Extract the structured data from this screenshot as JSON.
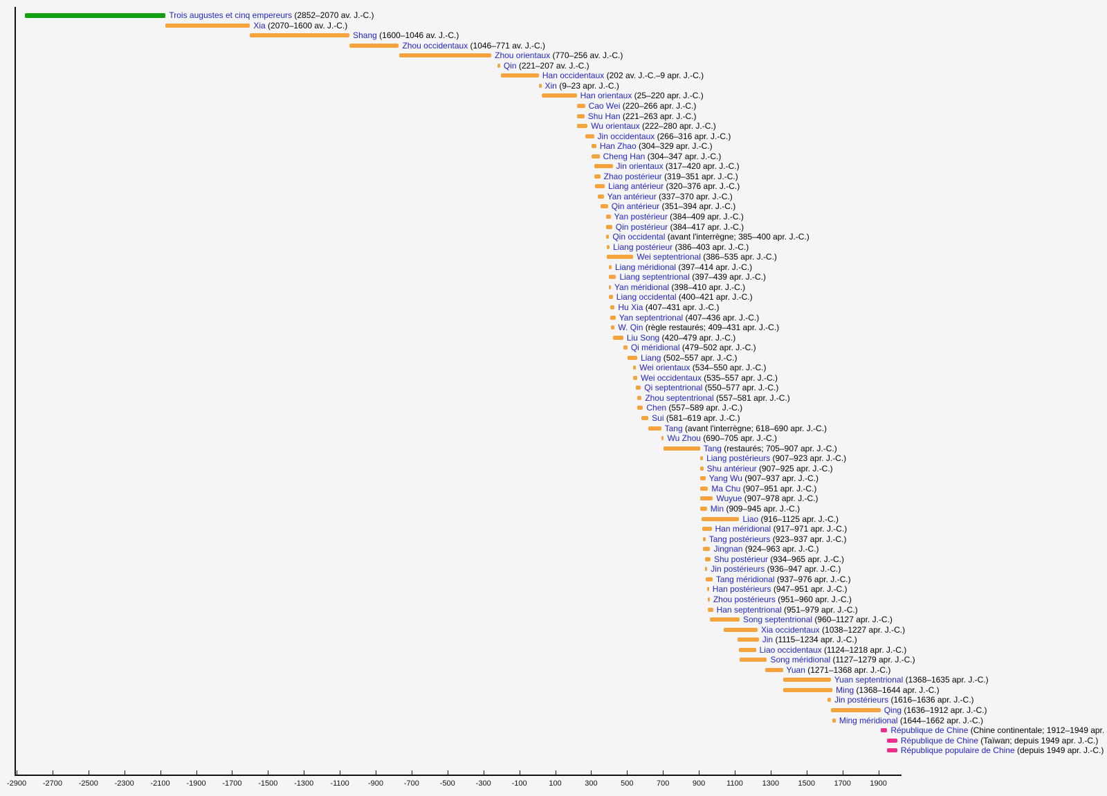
{
  "chart_data": {
    "type": "bar",
    "variant": "horizontal-timeline",
    "title": "",
    "xlabel": "",
    "ylabel": "",
    "grid": false,
    "legend": "none",
    "axis": {
      "min_year": -2900,
      "max_year": 2005,
      "tick_interval": 200,
      "tick_years": [
        -2900,
        -2700,
        -2500,
        -2300,
        -2100,
        -1900,
        -1700,
        -1500,
        -1300,
        -1100,
        -900,
        -700,
        -500,
        -300,
        -100,
        100,
        300,
        500,
        700,
        900,
        1100,
        1300,
        1500,
        1700,
        1900
      ],
      "tick_labels": [
        "-2900",
        "-2700",
        "-2500",
        "-2300",
        "-2100",
        "-1900",
        "-1700",
        "-1500",
        "-1300",
        "-1100",
        "-900",
        "-700",
        "-500",
        "-300",
        "-100",
        "100",
        "300",
        "500",
        "700",
        "900",
        "1100",
        "1300",
        "1500",
        "1700",
        "1900"
      ]
    },
    "palette": {
      "legendary": "#12A012",
      "imperial": "#F5A33D",
      "modern": "#EE2C8C",
      "label_link": "#2424CC",
      "date_text": "#000000",
      "axis": "#111111",
      "background": "#F4F5F4"
    },
    "entries": [
      {
        "name": "Trois augustes et cinq empereurs",
        "detail": "(2852–2070 av. J.-C.)",
        "start": -2852,
        "end": -2070,
        "color": "legendary"
      },
      {
        "name": "Xia",
        "detail": "(2070–1600 av. J.-C.)",
        "start": -2070,
        "end": -1600,
        "color": "imperial"
      },
      {
        "name": "Shang",
        "detail": "(1600–1046 av. J.-C.)",
        "start": -1600,
        "end": -1046,
        "color": "imperial"
      },
      {
        "name": "Zhou occidentaux",
        "detail": "(1046–771 av. J.-C.)",
        "start": -1046,
        "end": -771,
        "color": "imperial"
      },
      {
        "name": "Zhou orientaux",
        "detail": "(770–256 av. J.-C.)",
        "start": -770,
        "end": -256,
        "color": "imperial"
      },
      {
        "name": "Qin",
        "detail": "(221–207 av. J.-C.)",
        "start": -221,
        "end": -207,
        "color": "imperial"
      },
      {
        "name": "Han occidentaux",
        "detail": "(202 av. J.-C.–9 apr. J.-C.)",
        "start": -202,
        "end": 9,
        "color": "imperial"
      },
      {
        "name": "Xin",
        "detail": "(9–23 apr. J.-C.)",
        "start": 9,
        "end": 23,
        "color": "imperial"
      },
      {
        "name": "Han orientaux",
        "detail": "(25–220 apr. J.-C.)",
        "start": 25,
        "end": 220,
        "color": "imperial"
      },
      {
        "name": "Cao Wei",
        "detail": "(220–266 apr. J.-C.)",
        "start": 220,
        "end": 266,
        "color": "imperial"
      },
      {
        "name": "Shu Han",
        "detail": "(221–263 apr. J.-C.)",
        "start": 221,
        "end": 263,
        "color": "imperial"
      },
      {
        "name": "Wu orientaux",
        "detail": "(222–280 apr. J.-C.)",
        "start": 222,
        "end": 280,
        "color": "imperial"
      },
      {
        "name": "Jin occidentaux",
        "detail": "(266–316 apr. J.-C.)",
        "start": 266,
        "end": 316,
        "color": "imperial"
      },
      {
        "name": "Han Zhao",
        "detail": "(304–329 apr. J.-C.)",
        "start": 304,
        "end": 329,
        "color": "imperial"
      },
      {
        "name": "Cheng Han",
        "detail": "(304–347 apr. J.-C.)",
        "start": 304,
        "end": 347,
        "color": "imperial"
      },
      {
        "name": "Jin orientaux",
        "detail": "(317–420 apr. J.-C.)",
        "start": 317,
        "end": 420,
        "color": "imperial"
      },
      {
        "name": "Zhao postérieur",
        "detail": "(319–351 apr. J.-C.)",
        "start": 319,
        "end": 351,
        "color": "imperial"
      },
      {
        "name": "Liang antérieur",
        "detail": "(320–376 apr. J.-C.)",
        "start": 320,
        "end": 376,
        "color": "imperial"
      },
      {
        "name": "Yan antérieur",
        "detail": "(337–370 apr. J.-C.)",
        "start": 337,
        "end": 370,
        "color": "imperial"
      },
      {
        "name": "Qin antérieur",
        "detail": "(351–394 apr. J.-C.)",
        "start": 351,
        "end": 394,
        "color": "imperial"
      },
      {
        "name": "Yan postérieur",
        "detail": "(384–409 apr. J.-C.)",
        "start": 384,
        "end": 409,
        "color": "imperial"
      },
      {
        "name": "Qin postérieur",
        "detail": "(384–417 apr. J.-C.)",
        "start": 384,
        "end": 417,
        "color": "imperial"
      },
      {
        "name": "Qin occidental",
        "detail": "(avant l'interrègne; 385–400 apr. J.-C.)",
        "start": 385,
        "end": 400,
        "color": "imperial"
      },
      {
        "name": "Liang postérieur",
        "detail": "(386–403 apr. J.-C.)",
        "start": 386,
        "end": 403,
        "color": "imperial"
      },
      {
        "name": "Wei septentrional",
        "detail": "(386–535 apr. J.-C.)",
        "start": 386,
        "end": 535,
        "color": "imperial"
      },
      {
        "name": "Liang méridional",
        "detail": "(397–414 apr. J.-C.)",
        "start": 397,
        "end": 414,
        "color": "imperial"
      },
      {
        "name": "Liang septentrional",
        "detail": "(397–439 apr. J.-C.)",
        "start": 397,
        "end": 439,
        "color": "imperial"
      },
      {
        "name": "Yan méridional",
        "detail": "(398–410 apr. J.-C.)",
        "start": 398,
        "end": 410,
        "color": "imperial"
      },
      {
        "name": "Liang occidental",
        "detail": "(400–421 apr. J.-C.)",
        "start": 400,
        "end": 421,
        "color": "imperial"
      },
      {
        "name": "Hu Xia",
        "detail": "(407–431 apr. J.-C.)",
        "start": 407,
        "end": 431,
        "color": "imperial"
      },
      {
        "name": "Yan septentrional",
        "detail": "(407–436 apr. J.-C.)",
        "start": 407,
        "end": 436,
        "color": "imperial"
      },
      {
        "name": "W. Qin",
        "detail": "(règle restaurés; 409–431 apr. J.-C.)",
        "start": 409,
        "end": 431,
        "color": "imperial"
      },
      {
        "name": "Liu Song",
        "detail": "(420–479 apr. J.-C.)",
        "start": 420,
        "end": 479,
        "color": "imperial"
      },
      {
        "name": "Qi méridional",
        "detail": "(479–502 apr. J.-C.)",
        "start": 479,
        "end": 502,
        "color": "imperial"
      },
      {
        "name": "Liang",
        "detail": "(502–557 apr. J.-C.)",
        "start": 502,
        "end": 557,
        "color": "imperial"
      },
      {
        "name": "Wei orientaux",
        "detail": "(534–550 apr. J.-C.)",
        "start": 534,
        "end": 550,
        "color": "imperial"
      },
      {
        "name": "Wei occidentaux",
        "detail": "(535–557 apr. J.-C.)",
        "start": 535,
        "end": 557,
        "color": "imperial"
      },
      {
        "name": "Qi septentrional",
        "detail": "(550–577 apr. J.-C.)",
        "start": 550,
        "end": 577,
        "color": "imperial"
      },
      {
        "name": "Zhou septentrional",
        "detail": "(557–581 apr. J.-C.)",
        "start": 557,
        "end": 581,
        "color": "imperial"
      },
      {
        "name": "Chen",
        "detail": "(557–589 apr. J.-C.)",
        "start": 557,
        "end": 589,
        "color": "imperial"
      },
      {
        "name": "Sui",
        "detail": "(581–619 apr. J.-C.)",
        "start": 581,
        "end": 619,
        "color": "imperial"
      },
      {
        "name": "Tang",
        "detail": "(avant l'interrègne; 618–690 apr. J.-C.)",
        "start": 618,
        "end": 690,
        "color": "imperial"
      },
      {
        "name": "Wu Zhou",
        "detail": "(690–705 apr. J.-C.)",
        "start": 690,
        "end": 705,
        "color": "imperial"
      },
      {
        "name": "Tang",
        "detail": "(restaurés; 705–907 apr. J.-C.)",
        "start": 705,
        "end": 907,
        "color": "imperial"
      },
      {
        "name": "Liang postérieurs",
        "detail": "(907–923 apr. J.-C.)",
        "start": 907,
        "end": 923,
        "color": "imperial"
      },
      {
        "name": "Shu antérieur",
        "detail": "(907–925 apr. J.-C.)",
        "start": 907,
        "end": 925,
        "color": "imperial"
      },
      {
        "name": "Yang Wu",
        "detail": "(907–937 apr. J.-C.)",
        "start": 907,
        "end": 937,
        "color": "imperial"
      },
      {
        "name": "Ma Chu",
        "detail": "(907–951 apr. J.-C.)",
        "start": 907,
        "end": 951,
        "color": "imperial"
      },
      {
        "name": "Wuyue",
        "detail": "(907–978 apr. J.-C.)",
        "start": 907,
        "end": 978,
        "color": "imperial"
      },
      {
        "name": "Min",
        "detail": "(909–945 apr. J.-C.)",
        "start": 909,
        "end": 945,
        "color": "imperial"
      },
      {
        "name": "Liao",
        "detail": "(916–1125 apr. J.-C.)",
        "start": 916,
        "end": 1125,
        "color": "imperial"
      },
      {
        "name": "Han méridional",
        "detail": "(917–971 apr. J.-C.)",
        "start": 917,
        "end": 971,
        "color": "imperial"
      },
      {
        "name": "Tang postérieurs",
        "detail": "(923–937 apr. J.-C.)",
        "start": 923,
        "end": 937,
        "color": "imperial"
      },
      {
        "name": "Jingnan",
        "detail": "(924–963 apr. J.-C.)",
        "start": 924,
        "end": 963,
        "color": "imperial"
      },
      {
        "name": "Shu postérieur",
        "detail": "(934–965 apr. J.-C.)",
        "start": 934,
        "end": 965,
        "color": "imperial"
      },
      {
        "name": "Jin postérieurs",
        "detail": "(936–947 apr. J.-C.)",
        "start": 936,
        "end": 947,
        "color": "imperial"
      },
      {
        "name": "Tang méridional",
        "detail": "(937–976 apr. J.-C.)",
        "start": 937,
        "end": 976,
        "color": "imperial"
      },
      {
        "name": "Han postérieurs",
        "detail": "(947–951 apr. J.-C.)",
        "start": 947,
        "end": 951,
        "color": "imperial"
      },
      {
        "name": "Zhou postérieurs",
        "detail": "(951–960 apr. J.-C.)",
        "start": 951,
        "end": 960,
        "color": "imperial"
      },
      {
        "name": "Han septentrional",
        "detail": "(951–979 apr. J.-C.)",
        "start": 951,
        "end": 979,
        "color": "imperial"
      },
      {
        "name": "Song septentrional",
        "detail": "(960–1127 apr. J.-C.)",
        "start": 960,
        "end": 1127,
        "color": "imperial"
      },
      {
        "name": "Xia occidentaux",
        "detail": "(1038–1227 apr. J.-C.)",
        "start": 1038,
        "end": 1227,
        "color": "imperial"
      },
      {
        "name": "Jin",
        "detail": "(1115–1234 apr. J.-C.)",
        "start": 1115,
        "end": 1234,
        "color": "imperial"
      },
      {
        "name": "Liao occidentaux",
        "detail": "(1124–1218 apr. J.-C.)",
        "start": 1124,
        "end": 1218,
        "color": "imperial"
      },
      {
        "name": "Song méridional",
        "detail": "(1127–1279 apr. J.-C.)",
        "start": 1127,
        "end": 1279,
        "color": "imperial"
      },
      {
        "name": "Yuan",
        "detail": "(1271–1368 apr. J.-C.)",
        "start": 1271,
        "end": 1368,
        "color": "imperial"
      },
      {
        "name": "Yuan septentrional",
        "detail": "(1368–1635 apr. J.-C.)",
        "start": 1368,
        "end": 1635,
        "color": "imperial"
      },
      {
        "name": "Ming",
        "detail": "(1368–1644 apr. J.-C.)",
        "start": 1368,
        "end": 1644,
        "color": "imperial"
      },
      {
        "name": "Jin postérieurs",
        "detail": "(1616–1636 apr. J.-C.)",
        "start": 1616,
        "end": 1636,
        "color": "imperial"
      },
      {
        "name": "Qing",
        "detail": "(1636–1912 apr. J.-C.)",
        "start": 1636,
        "end": 1912,
        "color": "imperial"
      },
      {
        "name": "Ming méridional",
        "detail": "(1644–1662 apr. J.-C.)",
        "start": 1644,
        "end": 1662,
        "color": "imperial"
      },
      {
        "name": "République de Chine",
        "detail": "(Chine continentale; 1912–1949 apr. J.-C.)",
        "start": 1912,
        "end": 1949,
        "color": "modern"
      },
      {
        "name": "République de Chine",
        "detail": "(Taïwan; depuis 1949 apr. J.-C.)",
        "start": 1949,
        "end": null,
        "ongoing": true,
        "color": "modern"
      },
      {
        "name": "République populaire de Chine",
        "detail": "(depuis 1949 apr. J.-C.)",
        "start": 1949,
        "end": null,
        "ongoing": true,
        "color": "modern"
      }
    ]
  }
}
